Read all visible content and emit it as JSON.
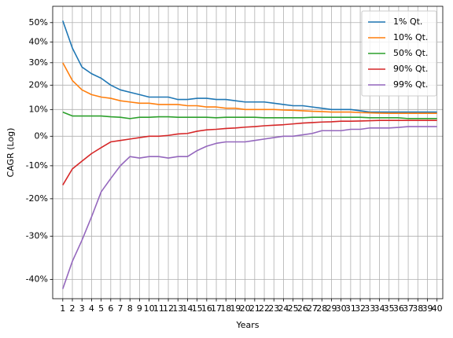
{
  "chart_data": {
    "type": "line",
    "xlabel": "Years",
    "ylabel": "CAGR (Log)",
    "yscale": "log1p",
    "grid": true,
    "legend": "upper right",
    "x": [
      1,
      2,
      3,
      4,
      5,
      6,
      7,
      8,
      9,
      10,
      11,
      12,
      13,
      14,
      15,
      16,
      17,
      18,
      19,
      20,
      21,
      22,
      23,
      24,
      25,
      26,
      27,
      28,
      29,
      30,
      31,
      32,
      33,
      34,
      35,
      36,
      37,
      38,
      39,
      40
    ],
    "xlim": [
      -0.05,
      40.6
    ],
    "xticks": [
      1,
      2,
      3,
      4,
      5,
      6,
      7,
      8,
      9,
      10,
      11,
      12,
      13,
      14,
      15,
      16,
      17,
      18,
      19,
      20,
      21,
      22,
      23,
      24,
      25,
      26,
      27,
      28,
      29,
      30,
      31,
      32,
      33,
      34,
      35,
      36,
      37,
      38,
      39,
      40
    ],
    "ylim": [
      -44,
      59
    ],
    "yticks": [
      {
        "value": -40,
        "label": "-40%"
      },
      {
        "value": -30,
        "label": "-30%"
      },
      {
        "value": -20,
        "label": "-20%"
      },
      {
        "value": -10,
        "label": "-10%"
      },
      {
        "value": 0,
        "label": "0%"
      },
      {
        "value": 10,
        "label": "10%"
      },
      {
        "value": 20,
        "label": "20%"
      },
      {
        "value": 30,
        "label": "30%"
      },
      {
        "value": 40,
        "label": "40%"
      },
      {
        "value": 50,
        "label": "50%"
      }
    ],
    "series": [
      {
        "name": "1% Qt.",
        "color": "#1f77b4",
        "values": [
          51,
          37,
          28,
          25,
          23,
          20,
          18,
          17,
          16,
          15,
          15,
          15,
          14,
          14,
          14.5,
          14.5,
          14,
          14,
          13.5,
          13,
          13,
          13,
          12.5,
          12,
          11.5,
          11.5,
          11,
          10.5,
          10,
          10,
          10,
          9.5,
          9,
          9,
          9,
          9,
          9,
          9,
          9,
          9
        ]
      },
      {
        "name": "10% Qt.",
        "color": "#ff7f0e",
        "values": [
          30,
          22,
          18,
          16,
          15,
          14.5,
          13.5,
          13,
          12.5,
          12.5,
          12,
          12,
          12,
          11.5,
          11.5,
          11,
          11,
          10.5,
          10.5,
          10,
          10,
          10,
          10,
          9.8,
          9.7,
          9.5,
          9.3,
          9.2,
          9,
          9,
          9,
          8.8,
          8.7,
          8.6,
          8.5,
          8.5,
          8.5,
          8.5,
          8.5,
          8.5
        ]
      },
      {
        "name": "50% Qt.",
        "color": "#2ca02c",
        "values": [
          9,
          7.5,
          7.5,
          7.5,
          7.5,
          7.2,
          7,
          6.5,
          7,
          7,
          7.2,
          7.2,
          7,
          7,
          7,
          7,
          6.8,
          7,
          7,
          7,
          7,
          6.8,
          6.8,
          6.8,
          6.8,
          6.8,
          7,
          7,
          7,
          7,
          7,
          7,
          6.8,
          6.8,
          6.8,
          6.8,
          6.5,
          6.5,
          6.5,
          6.5
        ]
      },
      {
        "name": "90% Qt.",
        "color": "#d62728",
        "values": [
          -16,
          -11,
          -8.5,
          -6,
          -4,
          -2,
          -1.5,
          -1,
          -0.5,
          0,
          0,
          0.3,
          0.8,
          1,
          1.8,
          2.3,
          2.5,
          2.8,
          3,
          3.3,
          3.5,
          3.8,
          4,
          4.2,
          4.5,
          4.8,
          5,
          5.2,
          5.3,
          5.5,
          5.5,
          5.6,
          5.7,
          5.8,
          5.8,
          5.8,
          5.8,
          5.8,
          5.8,
          5.8
        ]
      },
      {
        "name": "99% Qt.",
        "color": "#9467bd",
        "values": [
          -42,
          -36,
          -31,
          -25,
          -18,
          -14,
          -10,
          -7,
          -7.5,
          -7,
          -7,
          -7.5,
          -7,
          -7,
          -5,
          -3.5,
          -2.5,
          -2,
          -2,
          -2,
          -1.5,
          -1,
          -0.5,
          0,
          0,
          0.5,
          1,
          2,
          2,
          2,
          2.5,
          2.5,
          3,
          3,
          3,
          3.2,
          3.5,
          3.5,
          3.5,
          3.5
        ]
      }
    ]
  }
}
